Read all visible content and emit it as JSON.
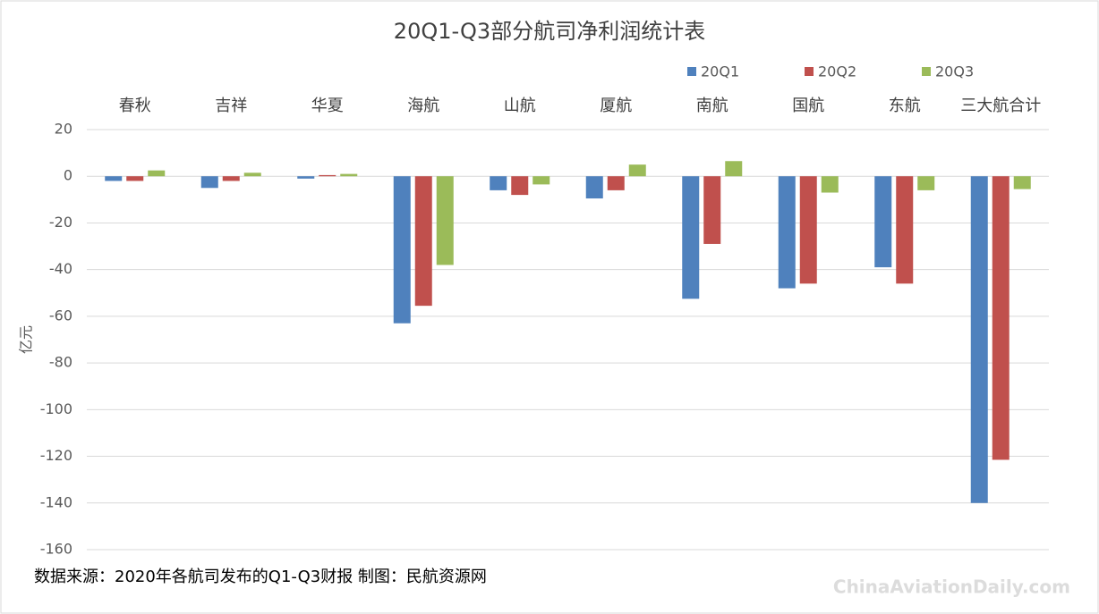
{
  "chart_data": {
    "type": "bar",
    "title": "20Q1-Q3部分航司净利润统计表",
    "y_label": "亿元",
    "categories": [
      "春秋",
      "吉祥",
      "华夏",
      "海航",
      "山航",
      "厦航",
      "南航",
      "国航",
      "东航",
      "三大航合计"
    ],
    "series": [
      {
        "name": "20Q1",
        "color": "#4f81bd",
        "values": [
          -2,
          -5,
          -1,
          -63,
          -6,
          -9.5,
          -52.5,
          -48,
          -39,
          -140
        ]
      },
      {
        "name": "20Q2",
        "color": "#c0504d",
        "values": [
          -2,
          -2,
          0.5,
          -55.5,
          -8,
          -6,
          -29,
          -46,
          -46,
          -121.5
        ]
      },
      {
        "name": "20Q3",
        "color": "#9bbb59",
        "values": [
          2.5,
          1.5,
          1,
          -38,
          -3.5,
          5,
          6.5,
          -7,
          -6,
          -5.5
        ]
      }
    ],
    "ylim": [
      -160,
      20
    ],
    "yticks": [
      -160,
      -140,
      -120,
      -100,
      -80,
      -60,
      -40,
      -20,
      0,
      20
    ],
    "grid": true,
    "legend": "top-right",
    "source": "数据来源：2020年各航司发布的Q1-Q3财报  制图：民航资源网",
    "watermark": "ChinaAviationDaily.com"
  }
}
